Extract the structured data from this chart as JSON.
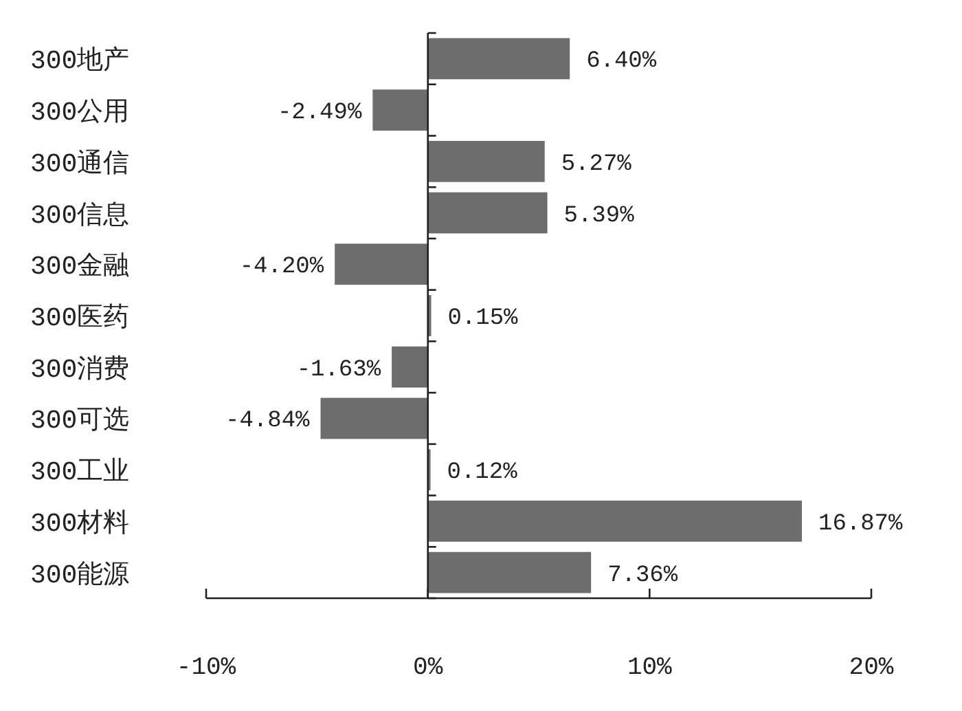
{
  "chart_data": {
    "type": "bar",
    "orientation": "horizontal",
    "categories": [
      "300地产",
      "300公用",
      "300通信",
      "300信息",
      "300金融",
      "300医药",
      "300消费",
      "300可选",
      "300工业",
      "300材料",
      "300能源"
    ],
    "values": [
      6.4,
      -2.49,
      5.27,
      5.39,
      -4.2,
      0.15,
      -1.63,
      -4.84,
      0.12,
      16.87,
      7.36
    ],
    "value_labels": [
      "6.40%",
      "-2.49%",
      "5.27%",
      "5.39%",
      "-4.20%",
      "0.15%",
      "-1.63%",
      "-4.84%",
      "0.12%",
      "16.87%",
      "7.36%"
    ],
    "color": "#6d6d6d",
    "xlim": [
      -10,
      20
    ],
    "xticks": [
      {
        "value": -10,
        "label": "-10%"
      },
      {
        "value": 0,
        "label": "0%"
      },
      {
        "value": 10,
        "label": "10%"
      },
      {
        "value": 20,
        "label": "20%"
      }
    ]
  }
}
